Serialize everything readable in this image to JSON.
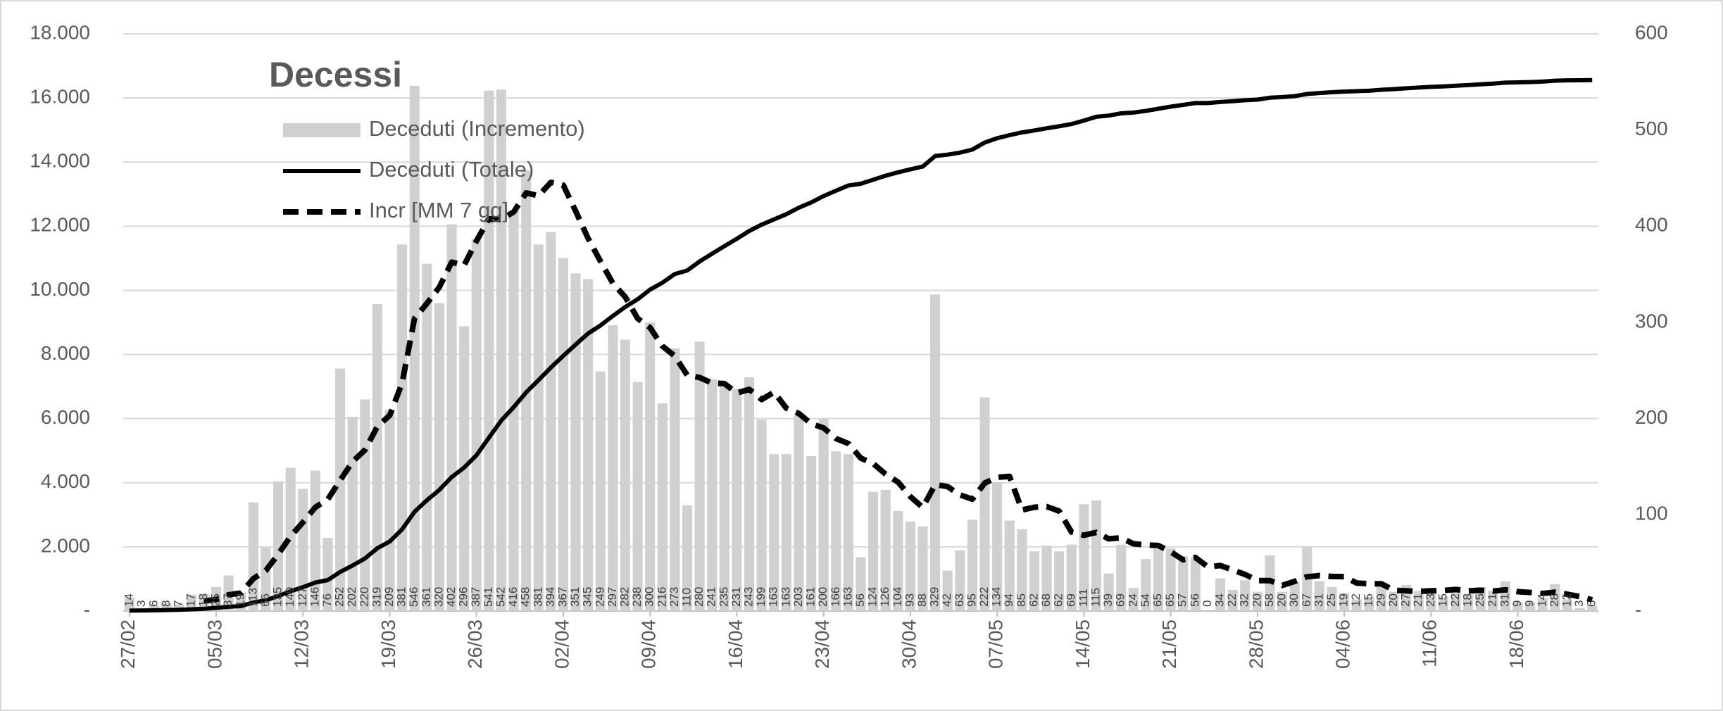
{
  "chart_data": {
    "type": "bar",
    "title": "Decessi",
    "categories": [
      "27/02",
      null,
      null,
      null,
      null,
      null,
      null,
      "05/03",
      null,
      null,
      null,
      null,
      null,
      null,
      "12/03",
      null,
      null,
      null,
      null,
      null,
      null,
      "19/03",
      null,
      null,
      null,
      null,
      null,
      null,
      "26/03",
      null,
      null,
      null,
      null,
      null,
      null,
      "02/04",
      null,
      null,
      null,
      null,
      null,
      null,
      "09/04",
      null,
      null,
      null,
      null,
      null,
      null,
      "16/04",
      null,
      null,
      null,
      null,
      null,
      null,
      "23/04",
      null,
      null,
      null,
      null,
      null,
      null,
      "30/04",
      null,
      null,
      null,
      null,
      null,
      null,
      "07/05",
      null,
      null,
      null,
      null,
      null,
      null,
      "14/05",
      null,
      null,
      null,
      null,
      null,
      null,
      "21/05",
      null,
      null,
      null,
      null,
      null,
      null,
      "28/05",
      null,
      null,
      null,
      null,
      null,
      null,
      "04/06",
      null,
      null,
      null,
      null,
      null,
      null,
      "11/06",
      null,
      null,
      null,
      null,
      null,
      null,
      "18/06",
      null,
      null,
      null,
      null,
      null,
      null
    ],
    "series": [
      {
        "name": "Deceduti (Incremento)",
        "type": "bar",
        "axis": "y2",
        "color": "#d0d0d0",
        "data_labels": true,
        "values": [
          14,
          3,
          6,
          8,
          7,
          17,
          18,
          25,
          37,
          19,
          113,
          66,
          135,
          149,
          127,
          146,
          76,
          252,
          202,
          220,
          319,
          209,
          381,
          546,
          361,
          320,
          402,
          296,
          387,
          541,
          542,
          416,
          458,
          381,
          394,
          367,
          351,
          345,
          249,
          297,
          282,
          238,
          300,
          216,
          273,
          110,
          280,
          241,
          235,
          231,
          243,
          199,
          163,
          163,
          203,
          161,
          200,
          166,
          163,
          56,
          124,
          126,
          104,
          93,
          88,
          329,
          42,
          63,
          95,
          222,
          134,
          94,
          85,
          62,
          68,
          62,
          69,
          111,
          115,
          39,
          69,
          24,
          54,
          65,
          65,
          57,
          56,
          0,
          34,
          22,
          32,
          20,
          58,
          20,
          30,
          67,
          31,
          25,
          19,
          12,
          15,
          29,
          20,
          27,
          21,
          23,
          15,
          22,
          18,
          25,
          21,
          31,
          9,
          9,
          14,
          28,
          12,
          3,
          6
        ]
      },
      {
        "name": "Deceduti (Totale)",
        "type": "line",
        "axis": "y",
        "color": "#000000",
        "dashed": false,
        "values": [
          14,
          17,
          23,
          31,
          38,
          55,
          73,
          98,
          135,
          154,
          267,
          333,
          468,
          617,
          744,
          890,
          966,
          1218,
          1420,
          1640,
          1959,
          2168,
          2549,
          3095,
          3456,
          3776,
          4178,
          4474,
          4861,
          5402,
          5944,
          6360,
          6818,
          7199,
          7593,
          7960,
          8311,
          8656,
          8905,
          9202,
          9484,
          9722,
          10022,
          10238,
          10511,
          10621,
          10901,
          11142,
          11377,
          11608,
          11851,
          12050,
          12213,
          12376,
          12579,
          12740,
          12940,
          13106,
          13269,
          13325,
          13449,
          13575,
          13679,
          13772,
          13860,
          14189,
          14231,
          14294,
          14389,
          14611,
          14745,
          14839,
          14924,
          14986,
          15054,
          15116,
          15185,
          15296,
          15411,
          15450,
          15519,
          15543,
          15597,
          15662,
          15727,
          15784,
          15840,
          15840,
          15874,
          15896,
          15928,
          15948,
          16006,
          16026,
          16056,
          16123,
          16154,
          16179,
          16198,
          16210,
          16225,
          16254,
          16274,
          16301,
          16322,
          16345,
          16360,
          16382,
          16400,
          16425,
          16446,
          16477,
          16486,
          16495,
          16509,
          16537,
          16549,
          16552,
          16558
        ]
      },
      {
        "name": "Incr [MM 7 gg]",
        "type": "line",
        "axis": "y2",
        "color": "#000000",
        "dashed": true,
        "values": [
          null,
          null,
          null,
          null,
          null,
          null,
          10.4,
          12.0,
          16.9,
          18.7,
          33.7,
          42.1,
          59.0,
          77.7,
          92.3,
          107.9,
          116.0,
          135.9,
          155.3,
          167.4,
          191.7,
          203.4,
          237.0,
          304.1,
          319.7,
          336.6,
          362.6,
          359.3,
          384.7,
          407.6,
          407.0,
          414.9,
          434.6,
          431.6,
          445.6,
          442.7,
          415.6,
          387.4,
          363.6,
          340.6,
          326.4,
          304.1,
          294.6,
          275.3,
          265.0,
          245.1,
          242.7,
          236.9,
          236.4,
          226.6,
          230.4,
          219.9,
          227.4,
          210.7,
          205.3,
          194.7,
          190.3,
          179.3,
          174.1,
          158.9,
          153.3,
          142.3,
          134.1,
          118.9,
          107.7,
          131.4,
          129.4,
          120.7,
          116.3,
          133.1,
          139.0,
          139.9,
          105.0,
          107.9,
          108.6,
          103.9,
          82.0,
          78.7,
          81.7,
          75.1,
          76.1,
          69.9,
          68.7,
          68.1,
          61.6,
          53.3,
          55.7,
          45.9,
          47.3,
          42.7,
          38.0,
          31.6,
          31.7,
          26.6,
          30.9,
          35.6,
          36.9,
          35.9,
          35.7,
          29.1,
          28.4,
          28.3,
          21.6,
          21.0,
          20.4,
          21.0,
          21.4,
          22.4,
          20.9,
          21.6,
          20.7,
          22.1,
          20.1,
          19.3,
          18.2,
          19.6,
          17.4,
          15.1,
          11.6
        ]
      }
    ],
    "ylim": [
      0,
      18000
    ],
    "yticks": [
      {
        "value": 0,
        "label": "-"
      },
      {
        "value": 2000,
        "label": "2.000"
      },
      {
        "value": 4000,
        "label": "4.000"
      },
      {
        "value": 6000,
        "label": "6.000"
      },
      {
        "value": 8000,
        "label": "8.000"
      },
      {
        "value": 10000,
        "label": "10.000"
      },
      {
        "value": 12000,
        "label": "12.000"
      },
      {
        "value": 14000,
        "label": "14.000"
      },
      {
        "value": 16000,
        "label": "16.000"
      },
      {
        "value": 18000,
        "label": "18.000"
      }
    ],
    "y2lim": [
      0,
      600
    ],
    "y2ticks": [
      {
        "value": 0,
        "label": "-"
      },
      100,
      200,
      300,
      400,
      500,
      600
    ],
    "grid": true,
    "legend": "upper left"
  }
}
